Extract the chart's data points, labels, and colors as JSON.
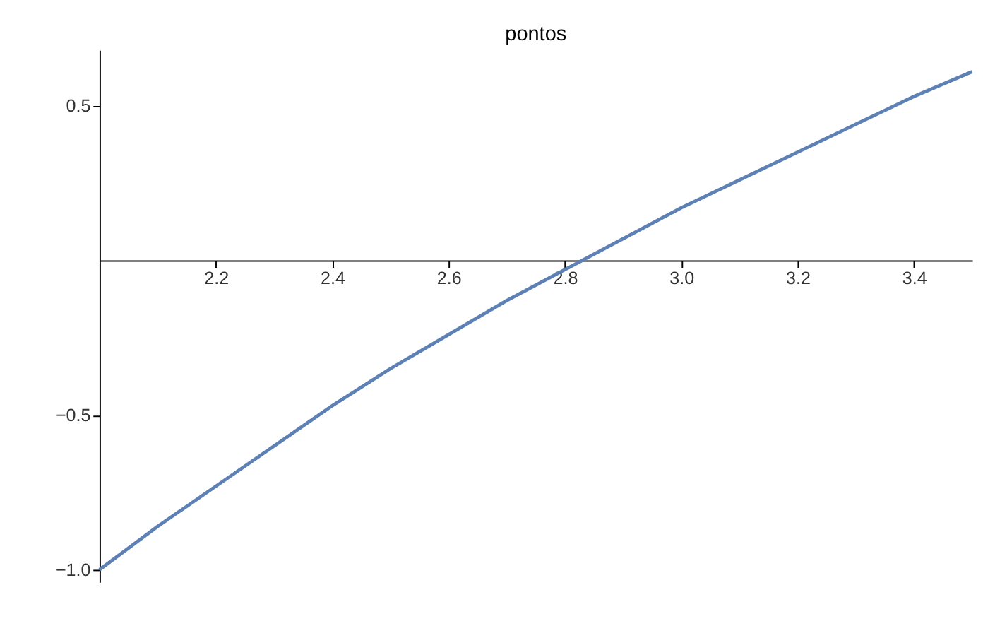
{
  "chart_data": {
    "type": "line",
    "title": "pontos",
    "x": [
      2.0,
      2.1,
      2.2,
      2.3,
      2.4,
      2.5,
      2.6,
      2.7,
      2.8,
      2.9,
      3.0,
      3.1,
      3.2,
      3.3,
      3.4,
      3.5
    ],
    "series": [
      {
        "color": "#5e81b5",
        "values": [
          -1.0,
          -0.86,
          -0.73,
          -0.6,
          -0.47,
          -0.35,
          -0.24,
          -0.13,
          -0.03,
          0.07,
          0.17,
          0.26,
          0.35,
          0.44,
          0.53,
          0.61
        ]
      }
    ],
    "xlim": [
      2.0,
      3.5
    ],
    "ylim": [
      -1.04,
      0.68
    ],
    "xticks": [
      {
        "value": 2.2,
        "label": "2.2"
      },
      {
        "value": 2.4,
        "label": "2.4"
      },
      {
        "value": 2.6,
        "label": "2.6"
      },
      {
        "value": 2.8,
        "label": "2.8"
      },
      {
        "value": 3.0,
        "label": "3.0"
      },
      {
        "value": 3.2,
        "label": "3.2"
      },
      {
        "value": 3.4,
        "label": "3.4"
      }
    ],
    "yticks": [
      {
        "value": -1.0,
        "label": "−1.0"
      },
      {
        "value": -0.5,
        "label": "−0.5"
      },
      {
        "value": 0.5,
        "label": "0.5"
      }
    ],
    "grid": false,
    "legend": false,
    "marker": "none",
    "line_style": "solid"
  }
}
